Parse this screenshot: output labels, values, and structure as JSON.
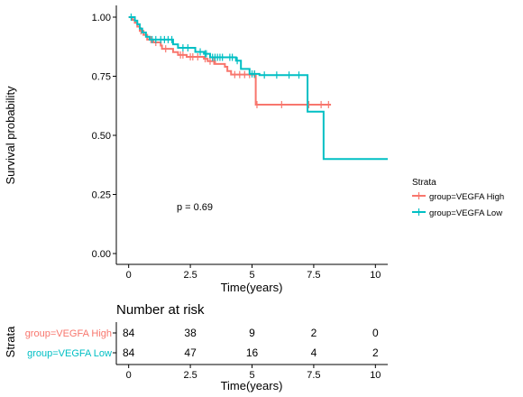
{
  "chart_data": {
    "type": "line",
    "subtype": "kaplan-meier",
    "xlabel": "Time(years)",
    "ylabel": "Survival probability",
    "xlim": [
      -0.5,
      10.5
    ],
    "ylim": [
      0,
      1
    ],
    "xticks": [
      "0",
      "2.5",
      "5",
      "7.5",
      "10"
    ],
    "yticks": [
      "0.00",
      "0.25",
      "0.50",
      "0.75",
      "1.00"
    ],
    "grid": false,
    "annotation": "p = 0.69",
    "legend": {
      "title": "Strata",
      "position": "right"
    },
    "series": [
      {
        "name": "group=VEGFA High",
        "color": "#F8766D",
        "steps": [
          [
            0,
            1.0
          ],
          [
            0.15,
            0.988
          ],
          [
            0.25,
            0.976
          ],
          [
            0.35,
            0.96
          ],
          [
            0.45,
            0.942
          ],
          [
            0.6,
            0.925
          ],
          [
            0.75,
            0.905
          ],
          [
            1.0,
            0.893
          ],
          [
            1.3,
            0.88
          ],
          [
            1.35,
            0.866
          ],
          [
            1.8,
            0.852
          ],
          [
            2.0,
            0.84
          ],
          [
            2.35,
            0.832
          ],
          [
            3.05,
            0.824
          ],
          [
            3.2,
            0.814
          ],
          [
            3.5,
            0.802
          ],
          [
            3.9,
            0.79
          ],
          [
            4.0,
            0.772
          ],
          [
            4.15,
            0.757
          ],
          [
            5.15,
            0.63
          ],
          [
            8.2,
            0.63
          ]
        ],
        "censors": [
          [
            0.5,
            0.942
          ],
          [
            0.9,
            0.905
          ],
          [
            1.1,
            0.893
          ],
          [
            1.5,
            0.866
          ],
          [
            2.1,
            0.84
          ],
          [
            2.2,
            0.84
          ],
          [
            2.5,
            0.832
          ],
          [
            2.6,
            0.832
          ],
          [
            2.8,
            0.832
          ],
          [
            3.1,
            0.824
          ],
          [
            3.3,
            0.814
          ],
          [
            3.45,
            0.814
          ],
          [
            4.3,
            0.757
          ],
          [
            4.5,
            0.757
          ],
          [
            4.7,
            0.757
          ],
          [
            4.9,
            0.757
          ],
          [
            5.1,
            0.757
          ],
          [
            5.2,
            0.63
          ],
          [
            6.2,
            0.63
          ],
          [
            7.3,
            0.63
          ],
          [
            7.8,
            0.63
          ],
          [
            8.1,
            0.63
          ]
        ]
      },
      {
        "name": "group=VEGFA Low",
        "color": "#00BFC4",
        "steps": [
          [
            0,
            1.0
          ],
          [
            0.25,
            0.985
          ],
          [
            0.35,
            0.97
          ],
          [
            0.45,
            0.952
          ],
          [
            0.55,
            0.935
          ],
          [
            0.7,
            0.917
          ],
          [
            0.85,
            0.905
          ],
          [
            1.8,
            0.885
          ],
          [
            2.0,
            0.87
          ],
          [
            2.7,
            0.853
          ],
          [
            3.05,
            0.845
          ],
          [
            3.3,
            0.83
          ],
          [
            4.35,
            0.816
          ],
          [
            4.55,
            0.781
          ],
          [
            4.9,
            0.76
          ],
          [
            5.3,
            0.755
          ],
          [
            7.25,
            0.6
          ],
          [
            7.9,
            0.4
          ],
          [
            10.5,
            0.4
          ]
        ],
        "censors": [
          [
            0.1,
            1.0
          ],
          [
            0.95,
            0.905
          ],
          [
            1.1,
            0.905
          ],
          [
            1.3,
            0.905
          ],
          [
            1.45,
            0.905
          ],
          [
            1.6,
            0.905
          ],
          [
            1.75,
            0.905
          ],
          [
            2.2,
            0.87
          ],
          [
            2.4,
            0.87
          ],
          [
            2.9,
            0.853
          ],
          [
            3.1,
            0.845
          ],
          [
            3.15,
            0.845
          ],
          [
            3.4,
            0.83
          ],
          [
            3.5,
            0.83
          ],
          [
            3.6,
            0.83
          ],
          [
            3.7,
            0.83
          ],
          [
            3.8,
            0.83
          ],
          [
            4.1,
            0.83
          ],
          [
            4.2,
            0.83
          ],
          [
            4.4,
            0.816
          ],
          [
            5.0,
            0.76
          ],
          [
            5.1,
            0.76
          ],
          [
            5.5,
            0.755
          ],
          [
            6.0,
            0.755
          ],
          [
            6.5,
            0.755
          ],
          [
            6.9,
            0.755
          ]
        ]
      }
    ],
    "risk_table": {
      "title": "Number at risk",
      "ylabel": "Strata",
      "xlabel": "Time(years)",
      "times": [
        "0",
        "2.5",
        "5",
        "7.5",
        "10"
      ],
      "rows": [
        {
          "label": "group=VEGFA High",
          "color": "#F8766D",
          "values": [
            "84",
            "38",
            "9",
            "2",
            "0"
          ]
        },
        {
          "label": "group=VEGFA Low",
          "color": "#00BFC4",
          "values": [
            "84",
            "47",
            "16",
            "4",
            "2"
          ]
        }
      ]
    }
  }
}
